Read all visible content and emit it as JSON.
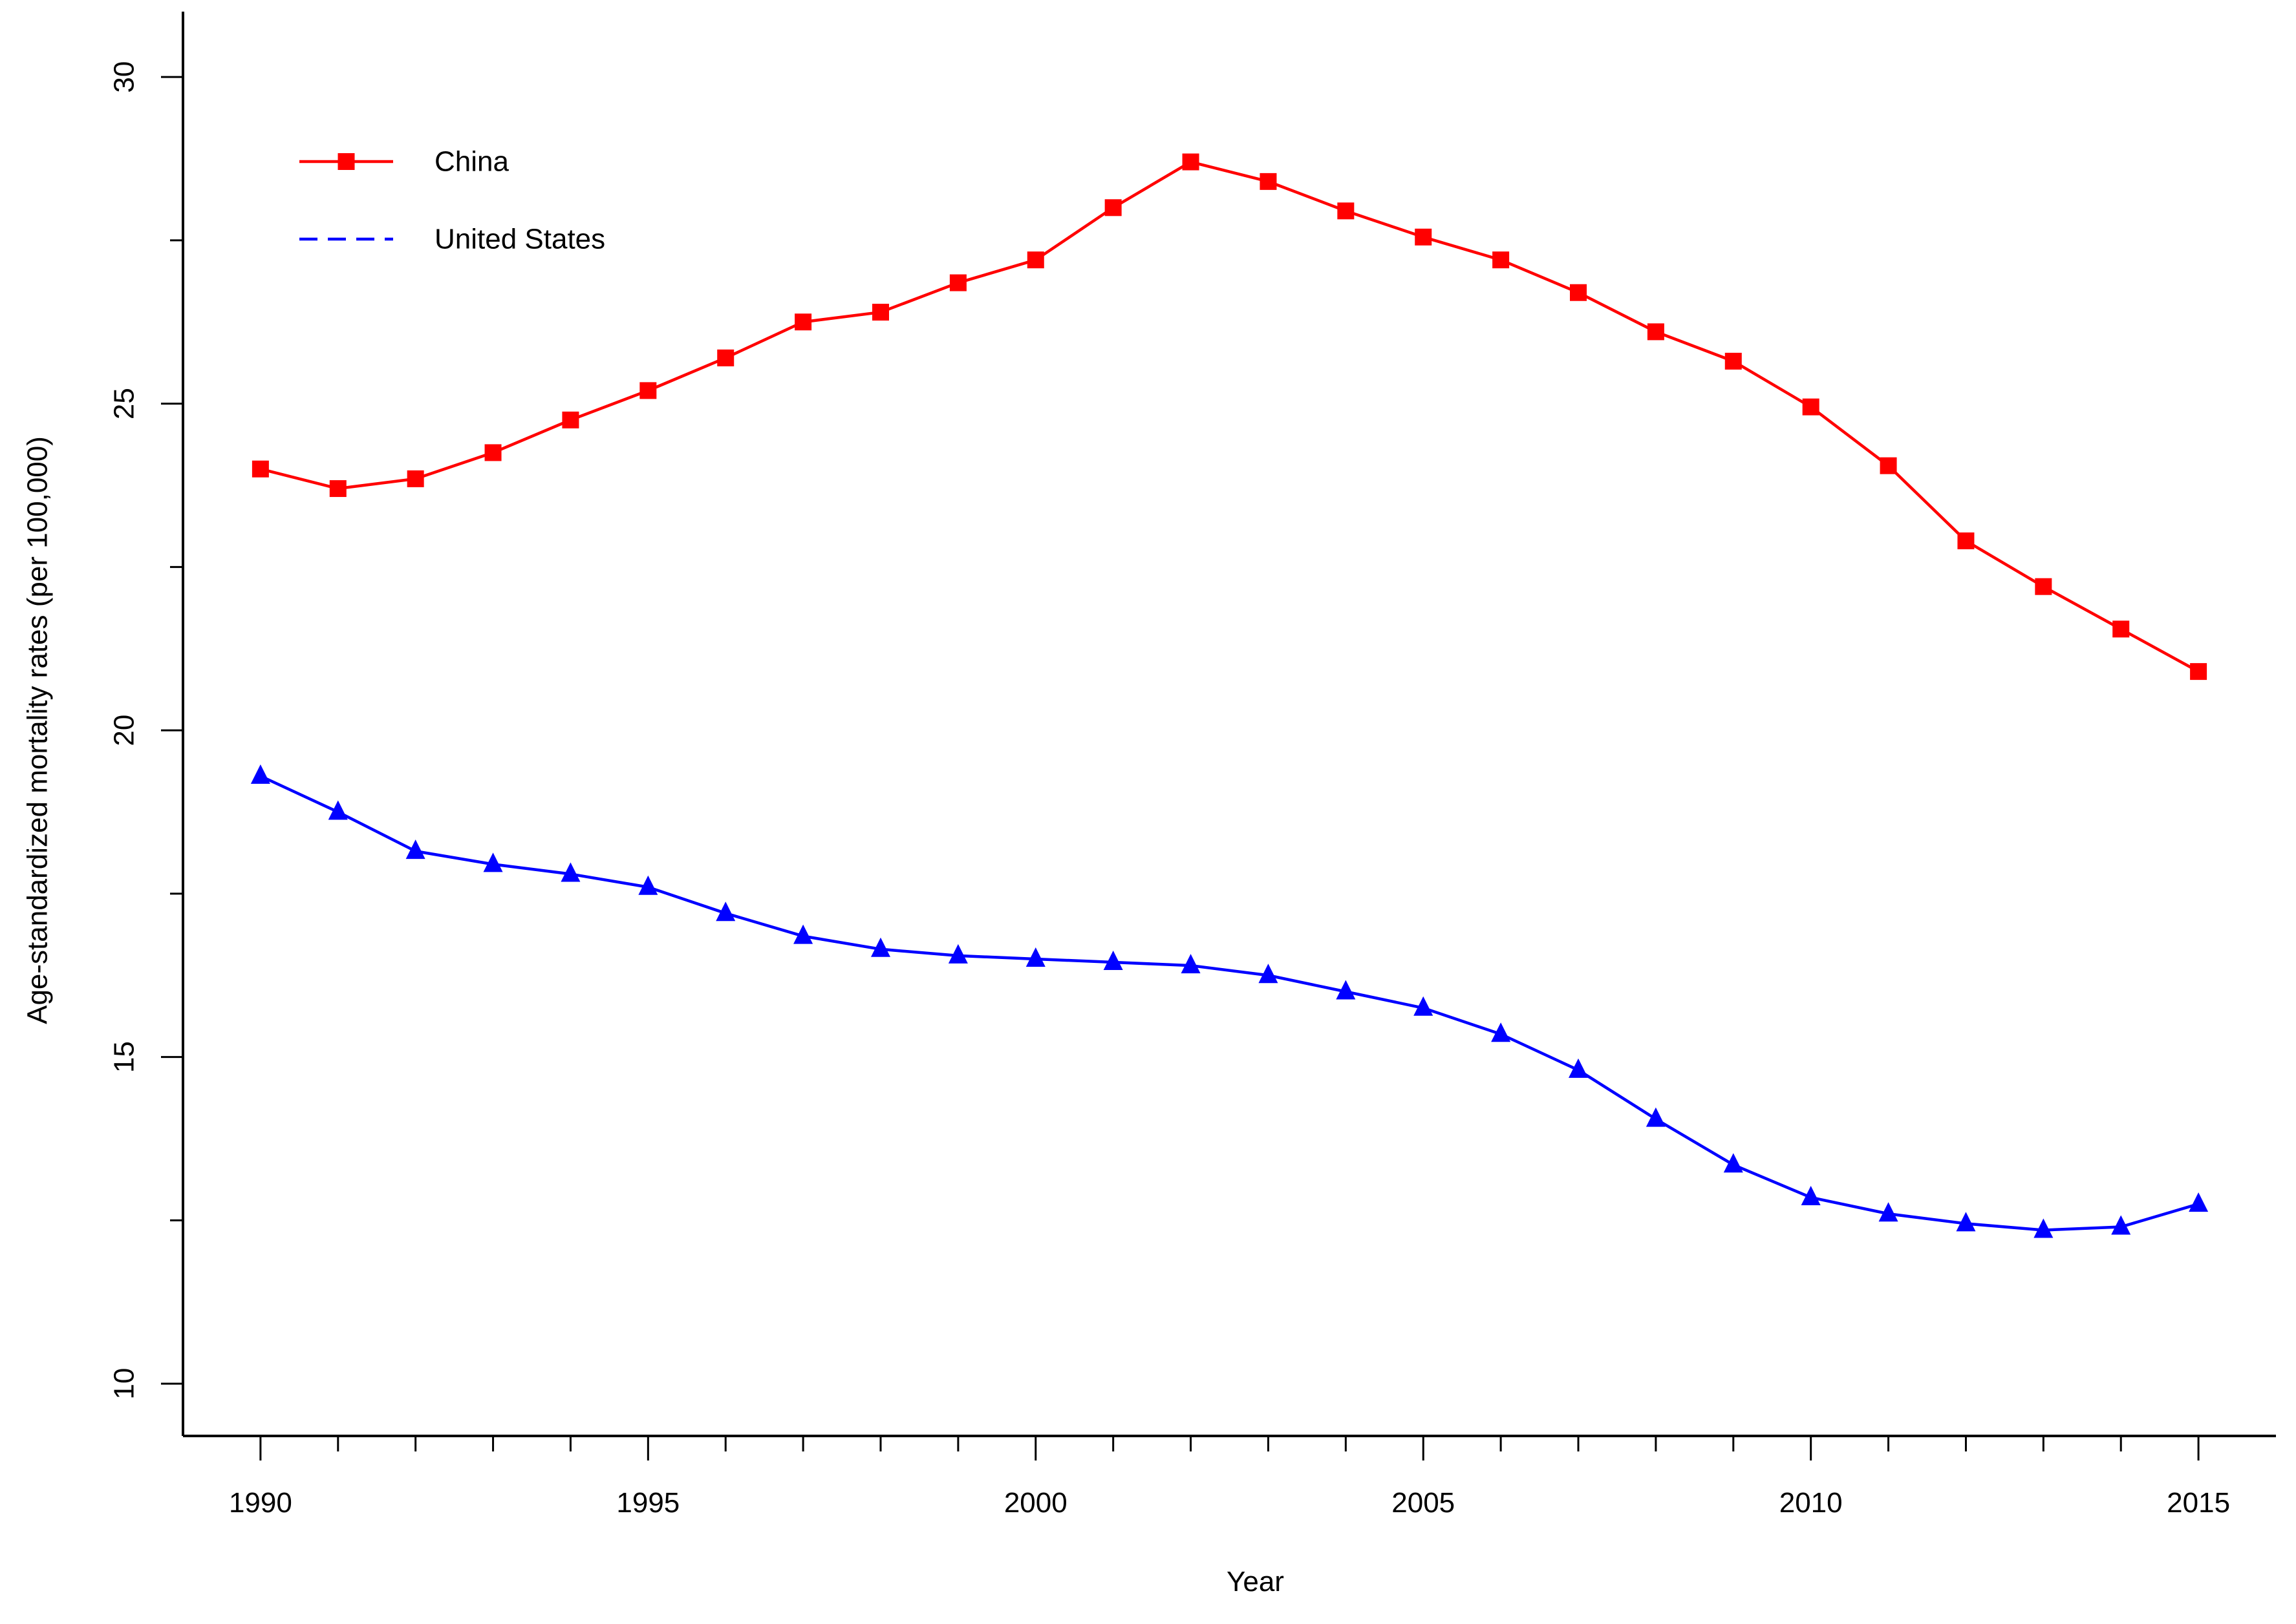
{
  "chart_data": {
    "type": "line",
    "title": "",
    "xlabel": "Year",
    "ylabel": "Age-standardized mortality rates (per 100,000)",
    "xlim": [
      1989,
      2016
    ],
    "ylim": [
      9.2,
      31
    ],
    "x_ticks": [
      1990,
      1995,
      2000,
      2005,
      2010,
      2015
    ],
    "y_ticks": [
      10,
      15,
      20,
      25,
      30
    ],
    "grid": false,
    "legend_position": "top-left",
    "x": [
      1990,
      1991,
      1992,
      1993,
      1994,
      1995,
      1996,
      1997,
      1998,
      1999,
      2000,
      2001,
      2002,
      2003,
      2004,
      2005,
      2006,
      2007,
      2008,
      2009,
      2010,
      2011,
      2012,
      2013,
      2014,
      2015
    ],
    "series": [
      {
        "name": "China",
        "color": "#ff0000",
        "marker": "square",
        "legend_line_style": "solid",
        "values": [
          24.0,
          23.7,
          23.85,
          24.25,
          24.75,
          25.2,
          25.7,
          26.25,
          26.4,
          26.85,
          27.2,
          28.0,
          28.7,
          28.4,
          27.95,
          27.55,
          27.2,
          26.7,
          26.1,
          25.65,
          24.95,
          24.05,
          22.9,
          22.2,
          21.55,
          20.9
        ]
      },
      {
        "name": "United States",
        "color": "#0000ff",
        "marker": "triangle",
        "legend_line_style": "dashed",
        "values": [
          19.3,
          18.75,
          18.15,
          17.95,
          17.8,
          17.6,
          17.2,
          16.85,
          16.65,
          16.55,
          16.5,
          16.45,
          16.4,
          16.25,
          16.0,
          15.75,
          15.35,
          14.8,
          14.05,
          13.35,
          12.85,
          12.6,
          12.45,
          12.35,
          12.4,
          12.75
        ]
      }
    ]
  }
}
